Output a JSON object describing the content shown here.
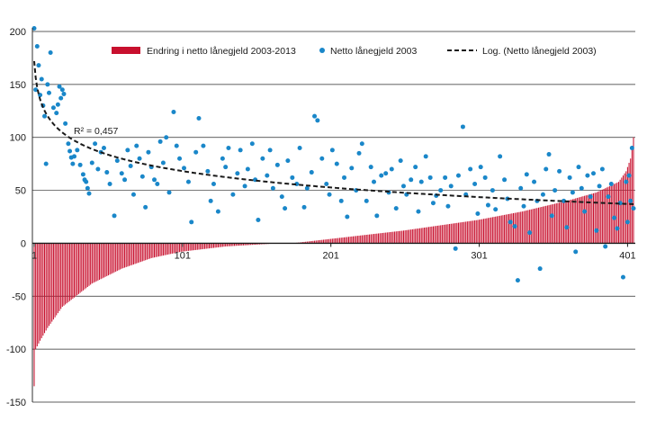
{
  "chart_data": {
    "type": "bar",
    "title": "",
    "xlabel": "",
    "ylabel": "",
    "ylim": [
      -150,
      200
    ],
    "xlim": [
      1,
      405
    ],
    "yticks": [
      200,
      150,
      100,
      50,
      0,
      -50,
      -100,
      -150
    ],
    "xticks": [
      1,
      101,
      201,
      301,
      401
    ],
    "grid": "horizontal",
    "legend_position": "top",
    "legend": [
      {
        "label": "Endring i netto lånegjeld 2003-2013",
        "kind": "bar"
      },
      {
        "label": "Netto lånegjeld 2003",
        "kind": "dot"
      },
      {
        "label": "Log. (Netto lånegjeld 2003)",
        "kind": "dashed-line"
      }
    ],
    "annotation": "R² = 0,457",
    "n_points": 405,
    "series": [
      {
        "name": "Endring i netto lånegjeld 2003-2013",
        "kind": "bar",
        "color": "#c8102e",
        "description": "sorted ascending",
        "anchors": [
          [
            1,
            -135
          ],
          [
            2,
            -100
          ],
          [
            5,
            -92
          ],
          [
            10,
            -80
          ],
          [
            20,
            -60
          ],
          [
            40,
            -38
          ],
          [
            60,
            -24
          ],
          [
            80,
            -14
          ],
          [
            100,
            -8
          ],
          [
            130,
            -3
          ],
          [
            160,
            -0.5
          ],
          [
            175,
            0
          ],
          [
            200,
            4
          ],
          [
            250,
            12
          ],
          [
            300,
            22
          ],
          [
            330,
            30
          ],
          [
            360,
            40
          ],
          [
            380,
            48
          ],
          [
            395,
            58
          ],
          [
            400,
            68
          ],
          [
            403,
            80
          ],
          [
            405,
            100
          ]
        ]
      },
      {
        "name": "Netto lånegjeld 2003",
        "kind": "scatter",
        "color": "#1a87c9",
        "points": [
          [
            1,
            203
          ],
          [
            2,
            145
          ],
          [
            3,
            186
          ],
          [
            4,
            168
          ],
          [
            5,
            140
          ],
          [
            6,
            155
          ],
          [
            7,
            130
          ],
          [
            8,
            120
          ],
          [
            9,
            75
          ],
          [
            10,
            150
          ],
          [
            11,
            142
          ],
          [
            12,
            180
          ],
          [
            14,
            128
          ],
          [
            16,
            123
          ],
          [
            17,
            131
          ],
          [
            18,
            148
          ],
          [
            19,
            137
          ],
          [
            20,
            145
          ],
          [
            21,
            141
          ],
          [
            22,
            113
          ],
          [
            24,
            94
          ],
          [
            25,
            87
          ],
          [
            26,
            81
          ],
          [
            27,
            75
          ],
          [
            28,
            82
          ],
          [
            30,
            88
          ],
          [
            32,
            74
          ],
          [
            34,
            65
          ],
          [
            35,
            60
          ],
          [
            36,
            58
          ],
          [
            37,
            52
          ],
          [
            38,
            47
          ],
          [
            40,
            76
          ],
          [
            42,
            94
          ],
          [
            44,
            70
          ],
          [
            46,
            86
          ],
          [
            48,
            90
          ],
          [
            50,
            67
          ],
          [
            52,
            56
          ],
          [
            55,
            26
          ],
          [
            57,
            78
          ],
          [
            60,
            66
          ],
          [
            62,
            60
          ],
          [
            64,
            88
          ],
          [
            66,
            73
          ],
          [
            68,
            46
          ],
          [
            70,
            92
          ],
          [
            72,
            80
          ],
          [
            74,
            63
          ],
          [
            76,
            34
          ],
          [
            78,
            86
          ],
          [
            80,
            72
          ],
          [
            82,
            60
          ],
          [
            84,
            56
          ],
          [
            86,
            96
          ],
          [
            88,
            76
          ],
          [
            90,
            100
          ],
          [
            92,
            48
          ],
          [
            95,
            124
          ],
          [
            97,
            92
          ],
          [
            99,
            80
          ],
          [
            102,
            71
          ],
          [
            105,
            58
          ],
          [
            107,
            20
          ],
          [
            110,
            86
          ],
          [
            112,
            118
          ],
          [
            115,
            92
          ],
          [
            118,
            68
          ],
          [
            120,
            40
          ],
          [
            122,
            56
          ],
          [
            125,
            30
          ],
          [
            128,
            80
          ],
          [
            130,
            72
          ],
          [
            132,
            90
          ],
          [
            135,
            46
          ],
          [
            138,
            66
          ],
          [
            140,
            88
          ],
          [
            143,
            54
          ],
          [
            145,
            70
          ],
          [
            148,
            94
          ],
          [
            150,
            60
          ],
          [
            152,
            22
          ],
          [
            155,
            80
          ],
          [
            158,
            64
          ],
          [
            160,
            88
          ],
          [
            162,
            52
          ],
          [
            165,
            74
          ],
          [
            168,
            44
          ],
          [
            170,
            33
          ],
          [
            172,
            78
          ],
          [
            175,
            62
          ],
          [
            178,
            56
          ],
          [
            180,
            90
          ],
          [
            183,
            34
          ],
          [
            185,
            52
          ],
          [
            188,
            67
          ],
          [
            190,
            120
          ],
          [
            192,
            116
          ],
          [
            195,
            80
          ],
          [
            198,
            56
          ],
          [
            200,
            46
          ],
          [
            202,
            88
          ],
          [
            205,
            75
          ],
          [
            208,
            40
          ],
          [
            210,
            62
          ],
          [
            212,
            25
          ],
          [
            215,
            71
          ],
          [
            218,
            50
          ],
          [
            220,
            85
          ],
          [
            222,
            94
          ],
          [
            225,
            40
          ],
          [
            228,
            72
          ],
          [
            230,
            58
          ],
          [
            232,
            26
          ],
          [
            235,
            64
          ],
          [
            238,
            66
          ],
          [
            240,
            48
          ],
          [
            242,
            70
          ],
          [
            245,
            33
          ],
          [
            248,
            78
          ],
          [
            250,
            54
          ],
          [
            252,
            46
          ],
          [
            255,
            60
          ],
          [
            258,
            72
          ],
          [
            260,
            30
          ],
          [
            262,
            58
          ],
          [
            265,
            82
          ],
          [
            268,
            62
          ],
          [
            270,
            38
          ],
          [
            272,
            45
          ],
          [
            275,
            50
          ],
          [
            278,
            62
          ],
          [
            280,
            35
          ],
          [
            282,
            54
          ],
          [
            285,
            -5
          ],
          [
            287,
            64
          ],
          [
            290,
            110
          ],
          [
            292,
            46
          ],
          [
            295,
            70
          ],
          [
            298,
            56
          ],
          [
            300,
            28
          ],
          [
            302,
            72
          ],
          [
            305,
            62
          ],
          [
            307,
            36
          ],
          [
            310,
            50
          ],
          [
            312,
            32
          ],
          [
            315,
            82
          ],
          [
            318,
            60
          ],
          [
            320,
            42
          ],
          [
            322,
            20
          ],
          [
            325,
            16
          ],
          [
            327,
            -35
          ],
          [
            329,
            52
          ],
          [
            331,
            35
          ],
          [
            333,
            65
          ],
          [
            335,
            10
          ],
          [
            338,
            58
          ],
          [
            340,
            40
          ],
          [
            342,
            -24
          ],
          [
            344,
            46
          ],
          [
            346,
            70
          ],
          [
            348,
            84
          ],
          [
            350,
            26
          ],
          [
            352,
            50
          ],
          [
            355,
            68
          ],
          [
            358,
            40
          ],
          [
            360,
            15
          ],
          [
            362,
            62
          ],
          [
            364,
            48
          ],
          [
            366,
            -8
          ],
          [
            368,
            72
          ],
          [
            370,
            52
          ],
          [
            372,
            30
          ],
          [
            374,
            64
          ],
          [
            376,
            44
          ],
          [
            378,
            66
          ],
          [
            380,
            12
          ],
          [
            382,
            54
          ],
          [
            384,
            70
          ],
          [
            386,
            -3
          ],
          [
            388,
            44
          ],
          [
            390,
            56
          ],
          [
            392,
            24
          ],
          [
            394,
            14
          ],
          [
            396,
            38
          ],
          [
            398,
            -32
          ],
          [
            400,
            58
          ],
          [
            401,
            20
          ],
          [
            402,
            64
          ],
          [
            403,
            40
          ],
          [
            404,
            90
          ],
          [
            405,
            33
          ]
        ]
      },
      {
        "name": "Log. (Netto lånegjeld 2003)",
        "kind": "line",
        "style": "dashed",
        "color": "#1a1a1a",
        "fit": "log",
        "coefficients": {
          "a": -22.5,
          "b": 172
        }
      }
    ]
  }
}
